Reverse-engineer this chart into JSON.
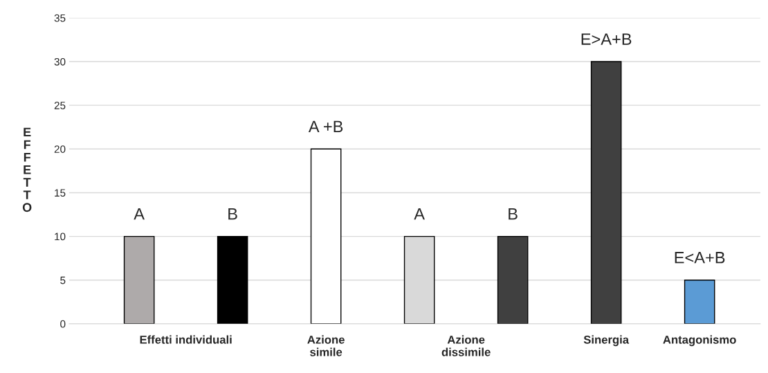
{
  "chart_data": {
    "type": "bar",
    "ylabel": "EFFETTO",
    "categories": [
      "Effetti individuali",
      null,
      "Azione\nsimile",
      "Azione\ndissimile",
      null,
      "Sinergia",
      "Antagonismo"
    ],
    "values": [
      10,
      10,
      20,
      10,
      10,
      30,
      5
    ],
    "colors": [
      "#aeaaaa",
      "#000000",
      "#ffffff",
      "#d9d9d9",
      "#404040",
      "#404040",
      "#5b9bd5"
    ],
    "value_labels": [
      "A",
      "B",
      "A +B",
      "A",
      "B",
      "E>A+B",
      "E<A+B"
    ],
    "ylim": [
      0,
      35
    ],
    "yticks": [
      0,
      5,
      10,
      15,
      20,
      25,
      30,
      35
    ],
    "grid": "y",
    "legend": false
  }
}
